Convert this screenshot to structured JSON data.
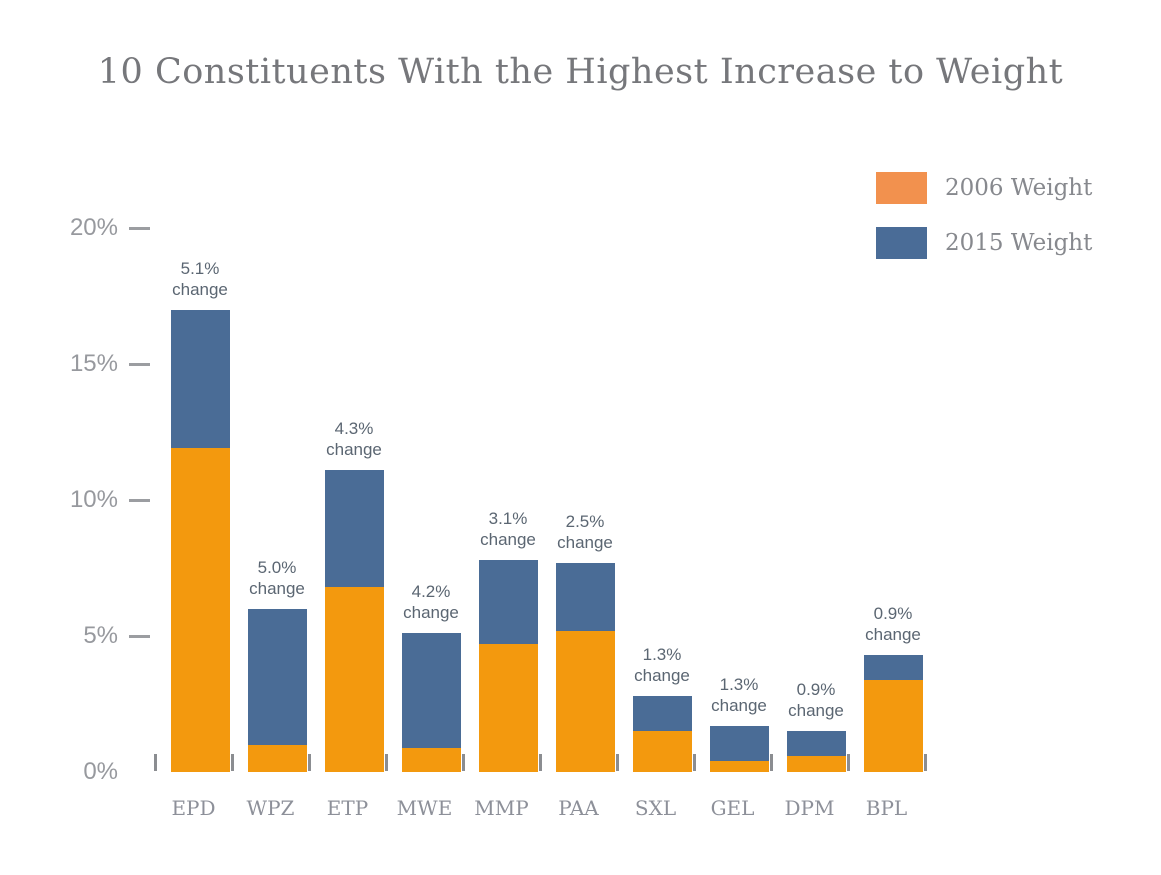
{
  "title": "10 Constituents With the Highest Increase to Weight",
  "legend": {
    "items": [
      {
        "label": "2006 Weight",
        "color": "#f2914e"
      },
      {
        "label": "2015 Weight",
        "color": "#4a6c97"
      }
    ]
  },
  "colors": {
    "bar_2006_orange": "#f3990e",
    "bar_2015_blue": "#4a6c96",
    "title_text": "#76777b",
    "annotation_text": "#5b6672",
    "axis_text": "#97999e",
    "x_label_text": "#8d9099"
  },
  "chart_data": {
    "type": "bar",
    "stacked": true,
    "title": "10 Constituents With the Highest Increase to Weight",
    "categories": [
      "EPD",
      "WPZ",
      "ETP",
      "MWE",
      "MMP",
      "PAA",
      "SXL",
      "GEL",
      "DPM",
      "BPL"
    ],
    "series": [
      {
        "name": "2006 Weight",
        "color": "#f3990e",
        "values": [
          11.9,
          1.0,
          6.8,
          0.9,
          4.7,
          5.2,
          1.5,
          0.4,
          0.6,
          3.4
        ]
      },
      {
        "name": "2015 Weight",
        "color": "#4a6c96",
        "values": [
          17.0,
          6.0,
          11.1,
          5.1,
          7.8,
          7.7,
          2.8,
          1.7,
          1.5,
          4.3
        ]
      }
    ],
    "annotations": [
      {
        "value": "5.1%",
        "word": "change"
      },
      {
        "value": "5.0%",
        "word": "change"
      },
      {
        "value": "4.3%",
        "word": "change"
      },
      {
        "value": "4.2%",
        "word": "change"
      },
      {
        "value": "3.1%",
        "word": "change"
      },
      {
        "value": "2.5%",
        "word": "change"
      },
      {
        "value": "1.3%",
        "word": "change"
      },
      {
        "value": "1.3%",
        "word": "change"
      },
      {
        "value": "0.9%",
        "word": "change"
      },
      {
        "value": "0.9%",
        "word": "change"
      }
    ],
    "yticks": [
      {
        "label": "0%",
        "value": 0
      },
      {
        "label": "5%",
        "value": 5
      },
      {
        "label": "10%",
        "value": 10
      },
      {
        "label": "15%",
        "value": 15
      },
      {
        "label": "20%",
        "value": 20
      }
    ],
    "ylim": [
      0,
      20
    ],
    "xlabel": "",
    "ylabel": "",
    "grid": false,
    "legend_position": "top-right"
  }
}
